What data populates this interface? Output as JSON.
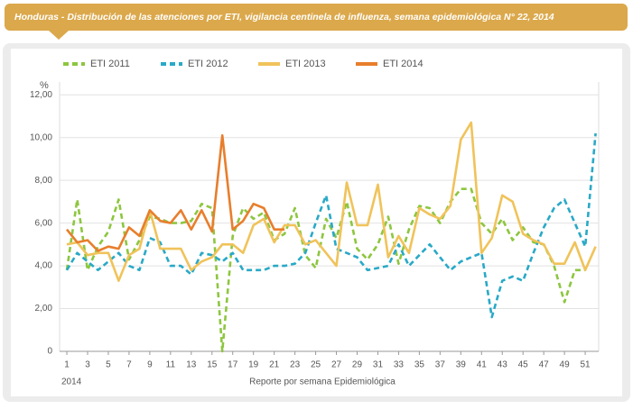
{
  "chart_data": {
    "type": "line",
    "title": "Honduras - Distribución de las atenciones por ETI, vigilancia centinela de influenza, semana epidemiológica N° 22, 2014",
    "y_label": "%",
    "x_label": "Reporte por semana Epidemiológica",
    "x_note": "2014",
    "x": [
      1,
      2,
      3,
      4,
      5,
      6,
      7,
      8,
      9,
      10,
      11,
      12,
      13,
      14,
      15,
      16,
      17,
      18,
      19,
      20,
      21,
      22,
      23,
      24,
      25,
      26,
      27,
      28,
      29,
      30,
      31,
      32,
      33,
      34,
      35,
      36,
      37,
      38,
      39,
      40,
      41,
      42,
      43,
      44,
      45,
      46,
      47,
      48,
      49,
      50,
      51,
      52
    ],
    "xlim": [
      0.3,
      52.3
    ],
    "xticks": [
      1,
      3,
      5,
      7,
      9,
      11,
      13,
      15,
      17,
      19,
      21,
      23,
      25,
      27,
      29,
      31,
      33,
      35,
      37,
      39,
      41,
      43,
      45,
      47,
      49,
      51
    ],
    "ylim": [
      0,
      12.6
    ],
    "yticks": [
      0,
      {
        "value": 2,
        "label": "2,00"
      },
      {
        "value": 4,
        "label": "4,00"
      },
      {
        "value": 6,
        "label": "6,00"
      },
      {
        "value": 8,
        "label": "8,00"
      },
      {
        "value": 10,
        "label": "10,00"
      },
      {
        "value": 12,
        "label": "12,00"
      }
    ],
    "grid": true,
    "series": [
      {
        "name": "ETI 2011",
        "color": "#8dc63f",
        "dashed": true,
        "values": [
          3.8,
          7.1,
          3.8,
          4.9,
          5.6,
          7.1,
          4.3,
          5.2,
          6.3,
          6.2,
          6.0,
          6.0,
          6.1,
          6.9,
          6.7,
          0.0,
          5.4,
          6.7,
          6.2,
          6.5,
          5.2,
          5.5,
          6.7,
          4.5,
          3.9,
          6.2,
          5.3,
          7.0,
          4.8,
          4.3,
          5.0,
          6.3,
          4.1,
          5.7,
          6.8,
          6.7,
          6.0,
          7.0,
          7.6,
          7.6,
          6.0,
          5.5,
          6.2,
          5.2,
          5.8,
          5.1,
          5.0,
          4.0,
          2.3,
          3.8,
          3.8,
          null
        ]
      },
      {
        "name": "ETI 2012",
        "color": "#29a9c7",
        "dashed": true,
        "values": [
          3.8,
          4.6,
          4.2,
          3.8,
          4.2,
          4.6,
          4.0,
          3.8,
          5.3,
          5.1,
          4.0,
          4.0,
          3.6,
          4.6,
          4.5,
          4.2,
          4.6,
          3.8,
          3.8,
          3.8,
          4.0,
          4.0,
          4.1,
          4.6,
          6.0,
          7.3,
          4.8,
          4.6,
          4.4,
          3.8,
          3.9,
          4.0,
          5.0,
          4.0,
          4.5,
          5.0,
          4.4,
          3.8,
          4.2,
          4.4,
          4.6,
          1.6,
          3.3,
          3.5,
          3.3,
          4.6,
          5.8,
          6.7,
          7.1,
          6.0,
          4.9,
          10.2
        ]
      },
      {
        "name": "ETI 2013",
        "color": "#f0c35a",
        "dashed": false,
        "values": [
          5.0,
          5.1,
          4.5,
          4.6,
          4.6,
          3.3,
          4.5,
          4.8,
          6.6,
          4.8,
          4.8,
          4.8,
          3.8,
          4.2,
          4.4,
          5.0,
          5.0,
          4.6,
          5.9,
          6.2,
          5.1,
          5.9,
          5.9,
          5.0,
          5.2,
          4.6,
          4.0,
          7.9,
          5.9,
          5.9,
          7.8,
          4.4,
          5.4,
          4.6,
          6.7,
          6.4,
          6.2,
          6.8,
          9.9,
          10.7,
          4.6,
          5.3,
          7.3,
          7.0,
          5.5,
          5.2,
          5.0,
          4.1,
          4.1,
          5.1,
          3.8,
          4.9
        ]
      },
      {
        "name": "ETI 2014",
        "color": "#e87e2c",
        "dashed": false,
        "values": [
          5.7,
          5.1,
          5.2,
          4.7,
          4.9,
          4.8,
          5.8,
          5.4,
          6.6,
          6.1,
          6.0,
          6.6,
          5.7,
          6.6,
          5.6,
          10.1,
          5.7,
          6.1,
          6.9,
          6.7,
          5.7,
          5.7,
          null,
          null,
          null,
          null,
          null,
          null,
          null,
          null,
          null,
          null,
          null,
          null,
          null,
          null,
          null,
          null,
          null,
          null,
          null,
          null,
          null,
          null,
          null,
          null,
          null,
          null,
          null,
          null,
          null,
          null
        ]
      }
    ]
  }
}
